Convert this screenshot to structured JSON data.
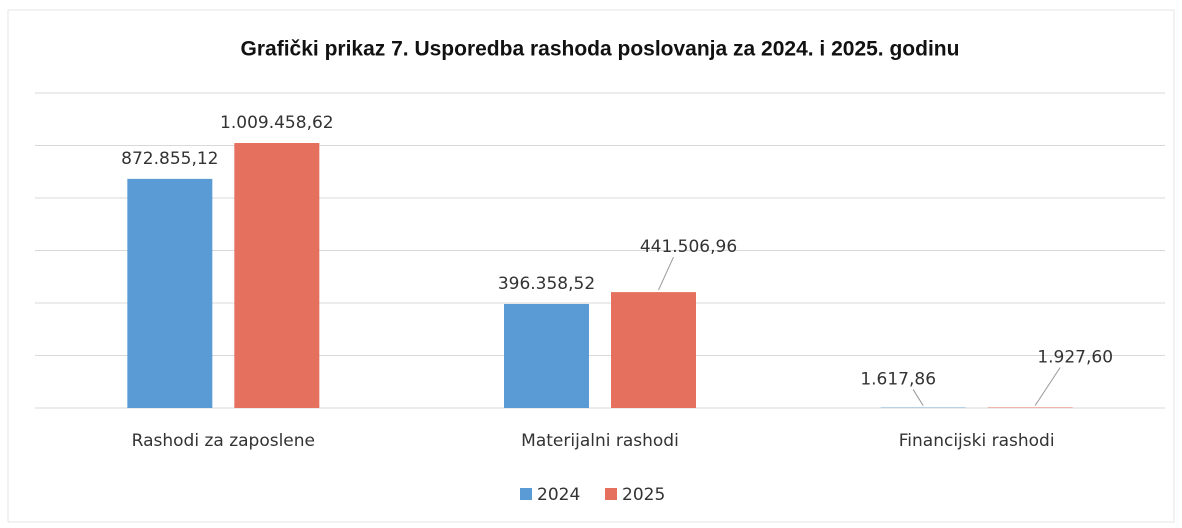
{
  "chart_data": {
    "type": "bar",
    "title": "Grafički prikaz 7. Usporedba rashoda poslovanja za 2024. i 2025. godinu",
    "categories": [
      "Rashodi za zaposlene",
      "Materijalni rashodi",
      "Financijski rashodi"
    ],
    "series": [
      {
        "name": "2024",
        "color": "#5b9bd5",
        "values": [
          872855.12,
          396358.52,
          1617.86
        ],
        "value_labels": [
          "872.855,12",
          "396.358,52",
          "1.617,86"
        ]
      },
      {
        "name": "2025",
        "color": "#e5705e",
        "values": [
          1009458.62,
          441506.96,
          1927.6
        ],
        "value_labels": [
          "1.009.458,62",
          "441.506,96",
          "1.927,60"
        ]
      }
    ],
    "ylim": [
      0,
      1200000
    ],
    "yticks": [
      0,
      200000,
      400000,
      600000,
      800000,
      1000000,
      1200000
    ],
    "grid": true,
    "legend": "bottom"
  }
}
